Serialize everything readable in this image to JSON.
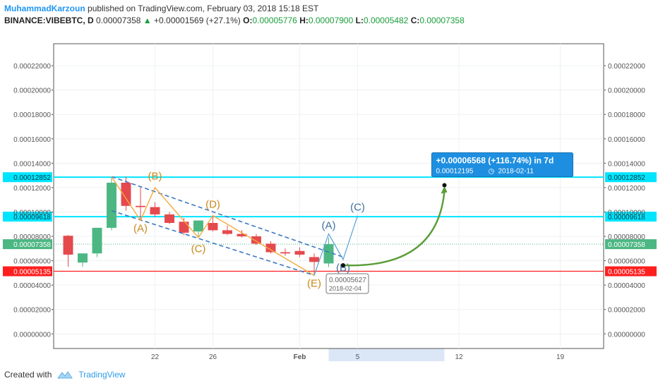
{
  "header": {
    "author": "MuhammadKarzoun",
    "published_text": "published on TradingView.com, February 03, 2018 15:18 EST",
    "symbol": "BINANCE:VIBEBTC, D",
    "last_price": "0.00007358",
    "change_arrow": "▲",
    "change": "+0.00001569 (+27.1%)",
    "open_label": "O:",
    "open": "0.00005776",
    "high_label": "H:",
    "high": "0.00007900",
    "low_label": "L:",
    "low": "0.00005482",
    "close_label": "C:",
    "close": "0.00007358"
  },
  "footer": {
    "created_with": "Created with",
    "brand": "TradingView"
  },
  "colors": {
    "bull": "#4cb782",
    "bear": "#e5494d",
    "cyan": "#00e5ff",
    "red_line": "#ff1f1f",
    "wave_orange": "#f6a93b",
    "channel_blue": "#3a78c2",
    "projection_blue": "#5aa1d6",
    "arrow_green": "#5a9e3a",
    "label_orange": "#c98a1a",
    "label_blue": "#3e6f9e"
  },
  "chart_data": {
    "type": "candlestick",
    "ylim": [
      -1.2e-05,
      0.000238
    ],
    "yticks": [
      "0.00000000",
      "0.00002000",
      "0.00004000",
      "0.00006000",
      "0.00008000",
      "0.00010000",
      "0.00012000",
      "0.00014000",
      "0.00016000",
      "0.00018000",
      "0.00020000",
      "0.00022000"
    ],
    "ytick_values": [
      0,
      2e-05,
      4e-05,
      6e-05,
      8e-05,
      0.0001,
      0.00012,
      0.00014,
      0.00016,
      0.00018,
      0.0002,
      0.00022
    ],
    "x_start": "2018-01-15",
    "x_end": "2018-02-22",
    "xticks": [
      {
        "label": "22",
        "date": "2018-01-22",
        "bold": false
      },
      {
        "label": "26",
        "date": "2018-01-26",
        "bold": false
      },
      {
        "label": "Feb",
        "date": "2018-02-01",
        "bold": true
      },
      {
        "label": "5",
        "date": "2018-02-05",
        "bold": false
      },
      {
        "label": "12",
        "date": "2018-02-12",
        "bold": false
      },
      {
        "label": "19",
        "date": "2018-02-19",
        "bold": false
      }
    ],
    "highlight_range": [
      "2018-02-03",
      "2018-02-11"
    ],
    "candles": [
      {
        "d": "2018-01-16",
        "o": 8.05e-05,
        "h": 8.1e-05,
        "l": 5.5e-05,
        "c": 6.5e-05
      },
      {
        "d": "2018-01-17",
        "o": 5.85e-05,
        "h": 6.6e-05,
        "l": 5.5e-05,
        "c": 6.6e-05
      },
      {
        "d": "2018-01-18",
        "o": 6.6e-05,
        "h": 8.7e-05,
        "l": 6.3e-05,
        "c": 8.7e-05
      },
      {
        "d": "2018-01-19",
        "o": 8.7e-05,
        "h": 0.000129,
        "l": 8.5e-05,
        "c": 0.000124
      },
      {
        "d": "2018-01-20",
        "o": 0.000124,
        "h": 0.000129,
        "l": 0.000101,
        "c": 0.000105
      },
      {
        "d": "2018-01-21",
        "o": 0.000105,
        "h": 0.00012,
        "l": 9.3e-05,
        "c": 0.000104
      },
      {
        "d": "2018-01-22",
        "o": 0.000104,
        "h": 0.000108,
        "l": 9.6e-05,
        "c": 9.8e-05
      },
      {
        "d": "2018-01-23",
        "o": 9.8e-05,
        "h": 0.0001,
        "l": 9e-05,
        "c": 9.1e-05
      },
      {
        "d": "2018-01-24",
        "o": 9.2e-05,
        "h": 9.5e-05,
        "l": 8.1e-05,
        "c": 8.3e-05
      },
      {
        "d": "2018-01-25",
        "o": 8.4e-05,
        "h": 9.3e-05,
        "l": 7.9e-05,
        "c": 9.3e-05
      },
      {
        "d": "2018-01-26",
        "o": 9.1e-05,
        "h": 9.7e-05,
        "l": 8.4e-05,
        "c": 8.5e-05
      },
      {
        "d": "2018-01-27",
        "o": 8.5e-05,
        "h": 8.9e-05,
        "l": 8.1e-05,
        "c": 8.2e-05
      },
      {
        "d": "2018-01-28",
        "o": 8.2e-05,
        "h": 8.5e-05,
        "l": 7.9e-05,
        "c": 8e-05
      },
      {
        "d": "2018-01-29",
        "o": 8e-05,
        "h": 8.2e-05,
        "l": 7.3e-05,
        "c": 7.4e-05
      },
      {
        "d": "2018-01-30",
        "o": 7.4e-05,
        "h": 7.6e-05,
        "l": 6.6e-05,
        "c": 6.7e-05
      },
      {
        "d": "2018-01-31",
        "o": 6.7e-05,
        "h": 7e-05,
        "l": 6.4e-05,
        "c": 6.6e-05
      },
      {
        "d": "2018-02-01",
        "o": 6.8e-05,
        "h": 7.1e-05,
        "l": 6.3e-05,
        "c": 6.5e-05
      },
      {
        "d": "2018-02-02",
        "o": 6.3e-05,
        "h": 6.6e-05,
        "l": 4.8e-05,
        "c": 5.9e-05
      },
      {
        "d": "2018-02-03",
        "o": 5.776e-05,
        "h": 7.9e-05,
        "l": 5.482e-05,
        "c": 7.358e-05
      }
    ],
    "hlines": [
      {
        "value": 0.00012852,
        "label": "0.00012852",
        "kind": "cyan"
      },
      {
        "value": 9.618e-05,
        "label": "0.00009618",
        "kind": "cyan"
      },
      {
        "value": 5.135e-05,
        "label": "0.00005135",
        "kind": "red"
      },
      {
        "value": 7.358e-05,
        "label": "0.00007358",
        "kind": "last"
      }
    ],
    "wave_abcde": [
      {
        "d": "2018-01-21",
        "v": 9.3e-05
      },
      {
        "d": "2018-01-22",
        "v": 0.00012
      },
      {
        "d": "2018-01-25",
        "v": 7.9e-05
      },
      {
        "d": "2018-01-26",
        "v": 9.7e-05
      },
      {
        "d": "2018-02-02",
        "v": 4.8e-05
      }
    ],
    "wave_labels_orange": [
      {
        "text": "(A)",
        "d": "2018-01-21",
        "v": 8.37e-05
      },
      {
        "text": "(B)",
        "d": "2018-01-22",
        "v": 0.0001265
      },
      {
        "text": "(C)",
        "d": "2018-01-25",
        "v": 6.7e-05
      },
      {
        "text": "(D)",
        "d": "2018-01-26",
        "v": 0.0001035
      },
      {
        "text": "(E)",
        "d": "2018-02-02",
        "v": 3.85e-05
      }
    ],
    "channel": [
      {
        "d1": "2018-01-19",
        "v1": 0.000129,
        "d2": "2018-02-04",
        "v2": 6.3e-05
      },
      {
        "d1": "2018-01-19",
        "v1": 0.000101,
        "d2": "2018-02-02",
        "v2": 4.8e-05
      }
    ],
    "projection": [
      {
        "d": "2018-02-02",
        "v": 4.8e-05
      },
      {
        "d": "2018-02-03",
        "v": 8.2e-05
      },
      {
        "d": "2018-02-04",
        "v": 6.1e-05
      },
      {
        "d": "2018-02-05",
        "v": 9.7e-05
      }
    ],
    "wave_labels_blue": [
      {
        "text": "(A)",
        "d": "2018-02-03",
        "v": 8.6e-05
      },
      {
        "text": "(C)",
        "d": "2018-02-05",
        "v": 0.000101
      },
      {
        "text": "(B)",
        "d": "2018-02-04",
        "v": 5.15e-05
      }
    ],
    "target_arrow": {
      "from_d": "2018-02-04",
      "from_v": 5.627e-05,
      "to_d": "2018-02-11",
      "to_v": 0.00012195
    },
    "callout": {
      "line1": "+0.00006568 (+116.74%) in 7d",
      "line2": "0.00012195",
      "line3": "2018-02-11"
    },
    "pin": {
      "price": "0.00005627",
      "date": "2018-02-04"
    }
  }
}
